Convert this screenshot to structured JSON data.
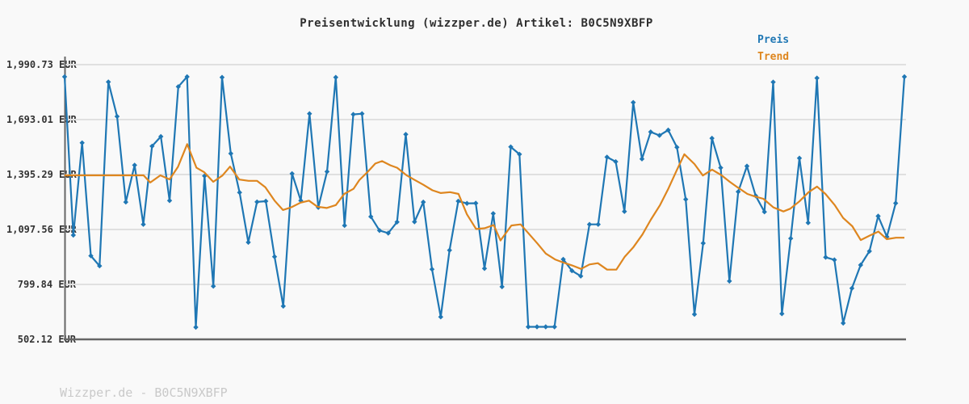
{
  "title": "Preisentwicklung (wizzper.de) Artikel: B0C5N9XBFP",
  "watermark": "Wizzper.de - B0C5N9XBFP",
  "colors": {
    "background": "#f9f9f9",
    "grid": "#e0e0e0",
    "axis": "#666666",
    "price": "#1f77b4",
    "trend": "#de861f",
    "title_text": "#2f2f2f",
    "tick_text": "#333333",
    "watermark_text": "#c9c9c9"
  },
  "chart_data": {
    "type": "line",
    "title": "Preisentwicklung (wizzper.de) Artikel: B0C5N9XBFP",
    "unit": "EUR",
    "xlabel": "",
    "ylabel": "",
    "ylim": [
      502.12,
      1990.73
    ],
    "grid": "horizontal",
    "legend_position": "top-right",
    "x_tick_labels": [],
    "y_ticks": [
      {
        "value": 1990.73,
        "label": "1,990.73 EUR"
      },
      {
        "value": 1693.01,
        "label": "1,693.01 EUR"
      },
      {
        "value": 1395.29,
        "label": "1,395.29 EUR"
      },
      {
        "value": 1097.56,
        "label": "1,097.56 EUR"
      },
      {
        "value": 799.84,
        "label": "799.84 EUR"
      },
      {
        "value": 502.12,
        "label": "502.12 EUR"
      }
    ],
    "series": [
      {
        "name": "Preis",
        "color": "#1f77b4",
        "style": "line+diamond-markers",
        "values": [
          1925,
          1067,
          1567,
          955,
          900,
          1897,
          1710,
          1246,
          1446,
          1125,
          1549,
          1601,
          1254,
          1871,
          1925,
          568,
          1388,
          790,
          1922,
          1509,
          1298,
          1028,
          1247,
          1251,
          950,
          682,
          1400,
          1254,
          1725,
          1217,
          1411,
          1922,
          1119,
          1721,
          1725,
          1167,
          1092,
          1078,
          1138,
          1613,
          1139,
          1246,
          882,
          624,
          985,
          1251,
          1239,
          1240,
          886,
          1184,
          787,
          1545,
          1505,
          570,
          570,
          570,
          570,
          936,
          874,
          845,
          1125,
          1125,
          1490,
          1465,
          1195,
          1786,
          1480,
          1626,
          1607,
          1636,
          1543,
          1261,
          638,
          1023,
          1592,
          1432,
          818,
          1302,
          1441,
          1280,
          1193,
          1896,
          641,
          1049,
          1484,
          1134,
          1918,
          947,
          933,
          590,
          779,
          905,
          980,
          1170,
          1058,
          1240,
          1925
        ]
      },
      {
        "name": "Trend",
        "color": "#de861f",
        "style": "line",
        "points": [
          [
            0.0,
            1391
          ],
          [
            0.094,
            1391
          ],
          [
            0.102,
            1352
          ],
          [
            0.114,
            1391
          ],
          [
            0.125,
            1369
          ],
          [
            0.135,
            1437
          ],
          [
            0.146,
            1560
          ],
          [
            0.157,
            1432
          ],
          [
            0.166,
            1409
          ],
          [
            0.177,
            1356
          ],
          [
            0.188,
            1390
          ],
          [
            0.197,
            1438
          ],
          [
            0.208,
            1368
          ],
          [
            0.219,
            1361
          ],
          [
            0.229,
            1361
          ],
          [
            0.239,
            1326
          ],
          [
            0.25,
            1254
          ],
          [
            0.26,
            1203
          ],
          [
            0.27,
            1218
          ],
          [
            0.281,
            1243
          ],
          [
            0.291,
            1254
          ],
          [
            0.301,
            1221
          ],
          [
            0.312,
            1214
          ],
          [
            0.323,
            1230
          ],
          [
            0.333,
            1290
          ],
          [
            0.344,
            1318
          ],
          [
            0.351,
            1365
          ],
          [
            0.361,
            1410
          ],
          [
            0.37,
            1455
          ],
          [
            0.378,
            1468
          ],
          [
            0.388,
            1445
          ],
          [
            0.396,
            1432
          ],
          [
            0.407,
            1392
          ],
          [
            0.416,
            1368
          ],
          [
            0.427,
            1340
          ],
          [
            0.438,
            1310
          ],
          [
            0.448,
            1295
          ],
          [
            0.459,
            1300
          ],
          [
            0.469,
            1290
          ],
          [
            0.479,
            1180
          ],
          [
            0.49,
            1100
          ],
          [
            0.5,
            1104
          ],
          [
            0.511,
            1121
          ],
          [
            0.519,
            1038
          ],
          [
            0.532,
            1119
          ],
          [
            0.543,
            1125
          ],
          [
            0.563,
            1022
          ],
          [
            0.573,
            967
          ],
          [
            0.584,
            935
          ],
          [
            0.594,
            918
          ],
          [
            0.604,
            903
          ],
          [
            0.615,
            884
          ],
          [
            0.625,
            908
          ],
          [
            0.635,
            915
          ],
          [
            0.646,
            880
          ],
          [
            0.657,
            880
          ],
          [
            0.667,
            950
          ],
          [
            0.677,
            1000
          ],
          [
            0.688,
            1070
          ],
          [
            0.698,
            1150
          ],
          [
            0.709,
            1230
          ],
          [
            0.719,
            1320
          ],
          [
            0.729,
            1420
          ],
          [
            0.738,
            1505
          ],
          [
            0.75,
            1452
          ],
          [
            0.76,
            1390
          ],
          [
            0.771,
            1422
          ],
          [
            0.782,
            1392
          ],
          [
            0.792,
            1356
          ],
          [
            0.801,
            1327
          ],
          [
            0.813,
            1290
          ],
          [
            0.822,
            1276
          ],
          [
            0.832,
            1264
          ],
          [
            0.844,
            1217
          ],
          [
            0.856,
            1195
          ],
          [
            0.864,
            1210
          ],
          [
            0.875,
            1250
          ],
          [
            0.886,
            1300
          ],
          [
            0.896,
            1330
          ],
          [
            0.906,
            1290
          ],
          [
            0.917,
            1230
          ],
          [
            0.927,
            1160
          ],
          [
            0.938,
            1115
          ],
          [
            0.948,
            1040
          ],
          [
            0.959,
            1065
          ],
          [
            0.969,
            1086
          ],
          [
            0.979,
            1045
          ],
          [
            0.99,
            1053
          ],
          [
            1.0,
            1053
          ]
        ]
      }
    ]
  }
}
